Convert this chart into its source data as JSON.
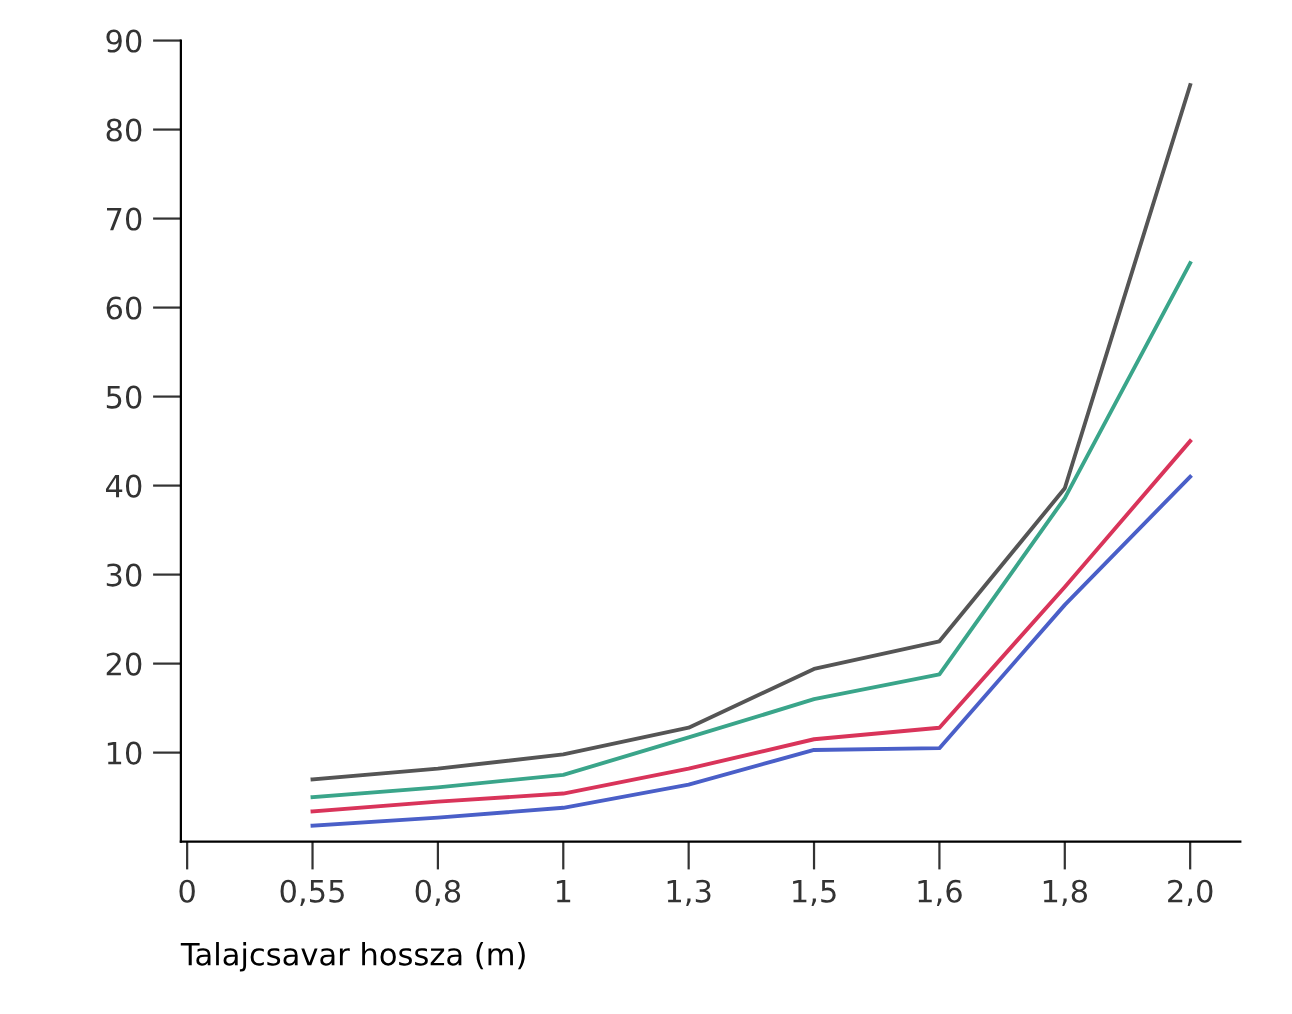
{
  "chart_data": {
    "type": "line",
    "xlabel": "Talajcsavar hossza (m)",
    "categories": [
      "0",
      "0,55",
      "0,8",
      "1",
      "1,3",
      "1,5",
      "1,6",
      "1,8",
      "2,0"
    ],
    "series": [
      {
        "color": "#555555",
        "values": [
          null,
          7.0,
          8.2,
          9.8,
          12.8,
          19.4,
          22.5,
          39.7,
          85
        ]
      },
      {
        "color": "#3aa58a",
        "values": [
          null,
          5.0,
          6.1,
          7.5,
          11.7,
          16.0,
          18.8,
          38.6,
          65
        ]
      },
      {
        "color": "#d9345a",
        "values": [
          null,
          3.4,
          4.5,
          5.4,
          8.2,
          11.5,
          12.8,
          28.6,
          45
        ]
      },
      {
        "color": "#4a5fc8",
        "values": [
          null,
          1.8,
          2.7,
          3.8,
          6.4,
          10.3,
          10.5,
          26.6,
          41
        ]
      }
    ],
    "ylim": [
      0,
      90
    ],
    "yticks": [
      10,
      20,
      30,
      40,
      50,
      60,
      70,
      80,
      90
    ],
    "grid": false,
    "legend": false,
    "marker": "none",
    "line_style": "solid"
  }
}
